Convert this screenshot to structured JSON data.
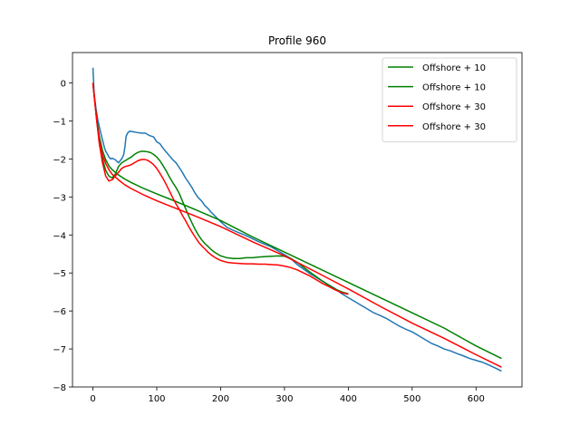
{
  "chart_data": {
    "type": "line",
    "title": "Profile 960",
    "xlabel": "",
    "ylabel": "",
    "xlim": [
      -32,
      672
    ],
    "ylim": [
      -8,
      0.8
    ],
    "xticks": [
      0,
      100,
      200,
      300,
      400,
      500,
      600
    ],
    "yticks": [
      0,
      -1,
      -2,
      -3,
      -4,
      -5,
      -6,
      -7,
      -8
    ],
    "grid": false,
    "legend_position": "top-right",
    "series": [
      {
        "name": "",
        "color": "#1f77b4",
        "x": [
          0,
          2,
          5,
          8,
          12,
          15,
          18,
          20,
          22,
          25,
          28,
          30,
          35,
          40,
          45,
          48,
          50,
          52,
          55,
          58,
          62,
          68,
          75,
          82,
          88,
          95,
          100,
          105,
          110,
          115,
          120,
          125,
          130,
          135,
          140,
          145,
          150,
          155,
          160,
          165,
          170,
          175,
          180,
          185,
          190,
          200,
          210,
          220,
          230,
          240,
          250,
          260,
          270,
          280,
          290,
          300,
          310,
          320,
          330,
          340,
          350,
          360,
          370,
          380,
          390,
          400,
          410,
          420,
          430,
          440,
          450,
          460,
          470,
          480,
          490,
          500,
          510,
          520,
          530,
          540,
          550,
          560,
          570,
          580,
          590,
          600,
          610,
          620,
          630,
          640
        ],
        "y": [
          0.4,
          -0.3,
          -0.7,
          -1.0,
          -1.3,
          -1.5,
          -1.7,
          -1.8,
          -1.85,
          -1.95,
          -2.0,
          -1.98,
          -2.02,
          -2.1,
          -2.0,
          -1.9,
          -1.7,
          -1.4,
          -1.3,
          -1.27,
          -1.28,
          -1.3,
          -1.32,
          -1.32,
          -1.38,
          -1.42,
          -1.55,
          -1.6,
          -1.72,
          -1.82,
          -1.92,
          -2.02,
          -2.1,
          -2.22,
          -2.35,
          -2.5,
          -2.62,
          -2.75,
          -2.9,
          -3.02,
          -3.1,
          -3.22,
          -3.3,
          -3.4,
          -3.48,
          -3.65,
          -3.8,
          -3.88,
          -3.95,
          -4.02,
          -4.1,
          -4.18,
          -4.25,
          -4.32,
          -4.42,
          -4.52,
          -4.62,
          -4.78,
          -4.9,
          -5.02,
          -5.12,
          -5.22,
          -5.32,
          -5.42,
          -5.55,
          -5.65,
          -5.75,
          -5.85,
          -5.95,
          -6.05,
          -6.12,
          -6.2,
          -6.3,
          -6.4,
          -6.48,
          -6.55,
          -6.65,
          -6.75,
          -6.85,
          -6.92,
          -7.0,
          -7.05,
          -7.12,
          -7.18,
          -7.25,
          -7.3,
          -7.35,
          -7.42,
          -7.5,
          -7.58
        ]
      },
      {
        "name": "Offshore + 10",
        "color": "#008000",
        "x": [
          0,
          3,
          6,
          10,
          15,
          20,
          25,
          30,
          35,
          40,
          45,
          50,
          55,
          60,
          65,
          70,
          75,
          80,
          85,
          90,
          95,
          100,
          105,
          110,
          115,
          120,
          125,
          130,
          135,
          140,
          145,
          150,
          155,
          160,
          165,
          170,
          175,
          180,
          185,
          190,
          195,
          200,
          210,
          220,
          230,
          240,
          250,
          260,
          270,
          280,
          290,
          300,
          310,
          320,
          330,
          340,
          350,
          360,
          370,
          380,
          390,
          400
        ],
        "y": [
          0.0,
          -0.5,
          -0.95,
          -1.5,
          -2.0,
          -2.3,
          -2.45,
          -2.5,
          -2.4,
          -2.2,
          -2.1,
          -2.05,
          -2.0,
          -1.95,
          -1.88,
          -1.83,
          -1.8,
          -1.8,
          -1.81,
          -1.83,
          -1.88,
          -1.95,
          -2.05,
          -2.18,
          -2.32,
          -2.48,
          -2.62,
          -2.75,
          -2.9,
          -3.1,
          -3.3,
          -3.5,
          -3.68,
          -3.85,
          -4.0,
          -4.12,
          -4.22,
          -4.3,
          -4.38,
          -4.45,
          -4.5,
          -4.55,
          -4.6,
          -4.62,
          -4.62,
          -4.6,
          -4.6,
          -4.58,
          -4.57,
          -4.56,
          -4.55,
          -4.56,
          -4.62,
          -4.72,
          -4.85,
          -4.98,
          -5.1,
          -5.22,
          -5.33,
          -5.43,
          -5.5,
          -5.55
        ]
      },
      {
        "name": "Offshore + 10",
        "color": "#008000",
        "x": [
          0,
          3,
          6,
          10,
          15,
          20,
          25,
          30,
          40,
          50,
          60,
          80,
          100,
          130,
          160,
          200,
          250,
          300,
          350,
          400,
          450,
          500,
          550,
          600,
          640
        ],
        "y": [
          0.0,
          -0.5,
          -0.95,
          -1.4,
          -1.78,
          -2.02,
          -2.18,
          -2.28,
          -2.42,
          -2.53,
          -2.62,
          -2.78,
          -2.92,
          -3.12,
          -3.33,
          -3.62,
          -4.05,
          -4.45,
          -4.85,
          -5.25,
          -5.65,
          -6.05,
          -6.45,
          -6.92,
          -7.25
        ]
      },
      {
        "name": "Offshore + 30",
        "color": "#ff0000",
        "x": [
          0,
          3,
          6,
          10,
          15,
          20,
          25,
          30,
          35,
          40,
          45,
          50,
          55,
          60,
          65,
          70,
          75,
          80,
          85,
          90,
          95,
          100,
          105,
          110,
          115,
          120,
          125,
          130,
          135,
          140,
          145,
          150,
          155,
          160,
          165,
          170,
          175,
          180,
          185,
          190,
          195,
          200,
          210,
          220,
          230,
          240,
          250,
          260,
          270,
          280,
          290,
          300,
          310,
          320,
          330,
          340,
          350,
          360,
          370,
          380,
          390,
          400
        ],
        "y": [
          0.0,
          -0.5,
          -1.0,
          -1.6,
          -2.1,
          -2.45,
          -2.58,
          -2.55,
          -2.45,
          -2.35,
          -2.25,
          -2.2,
          -2.18,
          -2.15,
          -2.1,
          -2.05,
          -2.02,
          -2.01,
          -2.03,
          -2.08,
          -2.15,
          -2.25,
          -2.38,
          -2.52,
          -2.68,
          -2.85,
          -3.02,
          -3.18,
          -3.32,
          -3.48,
          -3.62,
          -3.78,
          -3.92,
          -4.05,
          -4.18,
          -4.28,
          -4.36,
          -4.45,
          -4.52,
          -4.58,
          -4.63,
          -4.67,
          -4.72,
          -4.74,
          -4.75,
          -4.76,
          -4.76,
          -4.77,
          -4.77,
          -4.78,
          -4.79,
          -4.82,
          -4.86,
          -4.92,
          -5.0,
          -5.08,
          -5.18,
          -5.28,
          -5.36,
          -5.45,
          -5.52,
          -5.56
        ]
      },
      {
        "name": "Offshore + 30",
        "color": "#ff0000",
        "x": [
          0,
          3,
          6,
          10,
          15,
          20,
          25,
          30,
          40,
          50,
          60,
          80,
          100,
          130,
          160,
          200,
          250,
          300,
          350,
          400,
          450,
          500,
          550,
          600,
          640
        ],
        "y": [
          0.0,
          -0.5,
          -1.0,
          -1.5,
          -1.9,
          -2.12,
          -2.28,
          -2.4,
          -2.55,
          -2.68,
          -2.78,
          -2.95,
          -3.1,
          -3.3,
          -3.5,
          -3.78,
          -4.18,
          -4.55,
          -4.98,
          -5.42,
          -5.88,
          -6.32,
          -6.72,
          -7.15,
          -7.48
        ]
      }
    ]
  }
}
